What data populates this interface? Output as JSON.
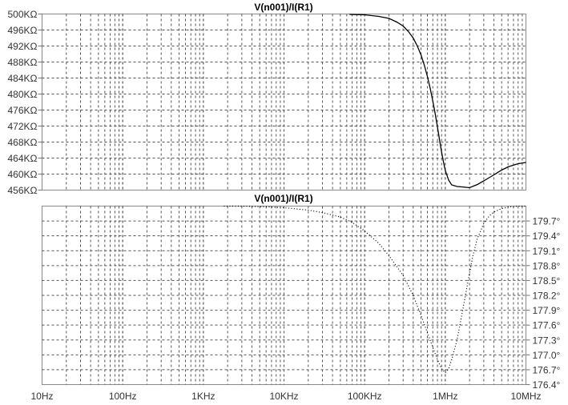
{
  "chart_data": [
    {
      "type": "line",
      "panel": "magnitude",
      "title": "V(n001)/I(R1)",
      "xscale": "log",
      "xlim": [
        10,
        10000000
      ],
      "x_tick_labels": [
        "10Hz",
        "100Hz",
        "1KHz",
        "10KHz",
        "100KHz",
        "1MHz",
        "10MHz"
      ],
      "x_tick_values": [
        10,
        100,
        1000,
        10000,
        100000,
        1000000,
        10000000
      ],
      "ylim": [
        456000,
        500000
      ],
      "y_tick_values": [
        500000,
        496000,
        492000,
        488000,
        484000,
        480000,
        476000,
        472000,
        468000,
        464000,
        460000,
        456000
      ],
      "y_tick_labels": [
        "500KΩ",
        "496KΩ",
        "492KΩ",
        "488KΩ",
        "484KΩ",
        "480KΩ",
        "476KΩ",
        "472KΩ",
        "468KΩ",
        "464KΩ",
        "460KΩ",
        "456KΩ"
      ],
      "y_axis_side": "left",
      "grid": true,
      "line_style": "solid",
      "color": "#000000",
      "series": [
        {
          "x": [
            65000,
            100000,
            150000,
            200000,
            250000,
            300000,
            350000,
            400000,
            450000,
            500000,
            550000,
            600000,
            650000,
            700000,
            750000,
            800000,
            850000,
            900000,
            950000,
            1000000,
            1100000,
            1200000,
            1400000,
            1600000,
            1800000,
            2000000,
            2500000,
            3000000,
            4000000,
            5000000,
            6000000,
            8000000,
            10000000
          ],
          "y": [
            499900,
            499800,
            499400,
            498900,
            498000,
            497000,
            495600,
            494000,
            492000,
            489800,
            487200,
            484400,
            481400,
            478300,
            475000,
            471700,
            468500,
            465500,
            463000,
            460900,
            458500,
            457300,
            456900,
            456800,
            456700,
            456600,
            457400,
            458300,
            459800,
            461000,
            461800,
            462600,
            462900
          ]
        }
      ]
    },
    {
      "type": "line",
      "panel": "phase",
      "title": "V(n001)/I(R1)",
      "xscale": "log",
      "xlim": [
        10,
        10000000
      ],
      "x_tick_labels": [
        "10Hz",
        "100Hz",
        "1KHz",
        "10KHz",
        "100KHz",
        "1MHz",
        "10MHz"
      ],
      "x_tick_values": [
        10,
        100,
        1000,
        10000,
        100000,
        1000000,
        10000000
      ],
      "ylim": [
        176.4,
        180.0
      ],
      "y_tick_values": [
        179.7,
        179.4,
        179.1,
        178.8,
        178.5,
        178.2,
        177.9,
        177.6,
        177.3,
        177.0,
        176.7,
        176.4
      ],
      "y_tick_labels": [
        "179.7°",
        "179.4°",
        "179.1°",
        "178.8°",
        "178.5°",
        "178.2°",
        "177.9°",
        "177.6°",
        "177.3°",
        "177.0°",
        "176.7°",
        "176.4°"
      ],
      "y_axis_side": "right",
      "grid": true,
      "line_style": "dotted",
      "color": "#000000",
      "series": [
        {
          "x": [
            1800,
            3000,
            5000,
            10000,
            20000,
            30000,
            50000,
            70000,
            100000,
            150000,
            200000,
            300000,
            400000,
            500000,
            600000,
            700000,
            800000,
            900000,
            1000000,
            1100000,
            1200000,
            1400000,
            1600000,
            1800000,
            2000000,
            2200000,
            2500000,
            3000000,
            3500000,
            4000000,
            5000000,
            6000000,
            8000000,
            10000000
          ],
          "y": [
            180.0,
            180.0,
            179.99,
            179.97,
            179.92,
            179.87,
            179.78,
            179.67,
            179.5,
            179.25,
            179.0,
            178.6,
            178.2,
            177.8,
            177.45,
            177.15,
            176.9,
            176.72,
            176.64,
            176.72,
            176.9,
            177.3,
            177.8,
            178.25,
            178.65,
            179.0,
            179.35,
            179.65,
            179.8,
            179.88,
            179.95,
            179.98,
            180.0,
            180.0
          ]
        }
      ]
    }
  ]
}
